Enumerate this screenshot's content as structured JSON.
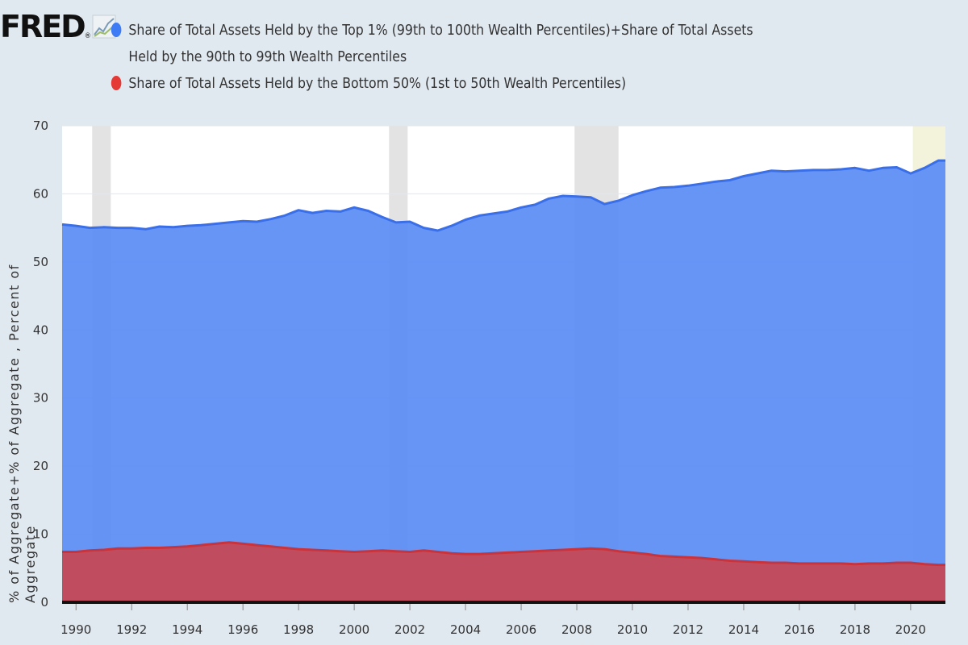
{
  "brand": {
    "logo_text": "FRED",
    "logo_reg": "®",
    "icon": "fred-chart-icon"
  },
  "chart_data": {
    "type": "area",
    "title": "",
    "xlabel": "",
    "ylabel": "% of Aggregate+% of Aggregate , Percent of Aggregate",
    "ylim": [
      0,
      70
    ],
    "xlim": [
      1989.5,
      2021.25
    ],
    "yticks": [
      0,
      10,
      20,
      30,
      40,
      50,
      60,
      70
    ],
    "xticks": [
      1990,
      1992,
      1994,
      1996,
      1998,
      2000,
      2002,
      2004,
      2006,
      2008,
      2010,
      2012,
      2014,
      2016,
      2018,
      2020
    ],
    "grid": true,
    "legend_position": "top",
    "recessions": [
      [
        1990.58,
        1991.25
      ],
      [
        2001.25,
        2001.92
      ],
      [
        2007.92,
        2009.5
      ],
      [
        2020.08,
        2021.25
      ]
    ],
    "series": [
      {
        "name": "Share of Total Assets Held by the Top 1% (99th to 100th Wealth Percentiles)+Share of Total Assets Held by the 90th to 99th Wealth Percentiles",
        "color": "#4a7ff5",
        "x": [
          1989.5,
          1990.0,
          1990.5,
          1991.0,
          1991.5,
          1992.0,
          1992.5,
          1993.0,
          1993.5,
          1994.0,
          1994.5,
          1995.0,
          1995.5,
          1996.0,
          1996.5,
          1997.0,
          1997.5,
          1998.0,
          1998.5,
          1999.0,
          1999.5,
          2000.0,
          2000.5,
          2001.0,
          2001.5,
          2002.0,
          2002.5,
          2003.0,
          2003.5,
          2004.0,
          2004.5,
          2005.0,
          2005.5,
          2006.0,
          2006.5,
          2007.0,
          2007.5,
          2008.0,
          2008.5,
          2009.0,
          2009.5,
          2010.0,
          2010.5,
          2011.0,
          2011.5,
          2012.0,
          2012.5,
          2013.0,
          2013.5,
          2014.0,
          2014.5,
          2015.0,
          2015.5,
          2016.0,
          2016.5,
          2017.0,
          2017.5,
          2018.0,
          2018.5,
          2019.0,
          2019.5,
          2020.0,
          2020.5,
          2021.0
        ],
        "values": [
          55.5,
          55.3,
          55.0,
          55.1,
          55.0,
          55.0,
          54.8,
          55.2,
          55.1,
          55.3,
          55.4,
          55.6,
          55.8,
          56.0,
          55.9,
          56.3,
          56.8,
          57.6,
          57.2,
          57.5,
          57.4,
          58.0,
          57.5,
          56.6,
          55.8,
          55.9,
          55.0,
          54.6,
          55.3,
          56.2,
          56.8,
          57.1,
          57.4,
          58.0,
          58.4,
          59.3,
          59.7,
          59.6,
          59.5,
          58.5,
          59.0,
          59.8,
          60.4,
          60.9,
          61.0,
          61.2,
          61.5,
          61.8,
          62.0,
          62.6,
          63.0,
          63.4,
          63.3,
          63.4,
          63.5,
          63.5,
          63.6,
          63.8,
          63.4,
          63.8,
          63.9,
          63.0,
          63.8,
          64.9
        ]
      },
      {
        "name": "Share of Total Assets Held by the Bottom 50% (1st to 50th Wealth Percentiles)",
        "color": "#d8393a",
        "x": [
          1989.5,
          1990.0,
          1990.5,
          1991.0,
          1991.5,
          1992.0,
          1992.5,
          1993.0,
          1993.5,
          1994.0,
          1994.5,
          1995.0,
          1995.5,
          1996.0,
          1996.5,
          1997.0,
          1997.5,
          1998.0,
          1998.5,
          1999.0,
          1999.5,
          2000.0,
          2000.5,
          2001.0,
          2001.5,
          2002.0,
          2002.5,
          2003.0,
          2003.5,
          2004.0,
          2004.5,
          2005.0,
          2005.5,
          2006.0,
          2006.5,
          2007.0,
          2007.5,
          2008.0,
          2008.5,
          2009.0,
          2009.5,
          2010.0,
          2010.5,
          2011.0,
          2011.5,
          2012.0,
          2012.5,
          2013.0,
          2013.5,
          2014.0,
          2014.5,
          2015.0,
          2015.5,
          2016.0,
          2016.5,
          2017.0,
          2017.5,
          2018.0,
          2018.5,
          2019.0,
          2019.5,
          2020.0,
          2020.5,
          2021.0
        ],
        "values": [
          7.4,
          7.4,
          7.6,
          7.7,
          7.9,
          7.9,
          8.0,
          8.0,
          8.1,
          8.2,
          8.4,
          8.6,
          8.8,
          8.6,
          8.4,
          8.2,
          8.0,
          7.8,
          7.7,
          7.6,
          7.5,
          7.4,
          7.5,
          7.6,
          7.5,
          7.4,
          7.6,
          7.4,
          7.2,
          7.1,
          7.1,
          7.2,
          7.3,
          7.4,
          7.5,
          7.6,
          7.7,
          7.8,
          7.9,
          7.8,
          7.5,
          7.3,
          7.1,
          6.8,
          6.7,
          6.6,
          6.5,
          6.3,
          6.1,
          6.0,
          5.9,
          5.8,
          5.8,
          5.7,
          5.7,
          5.7,
          5.7,
          5.6,
          5.7,
          5.7,
          5.8,
          5.8,
          5.6,
          5.5
        ]
      }
    ]
  }
}
